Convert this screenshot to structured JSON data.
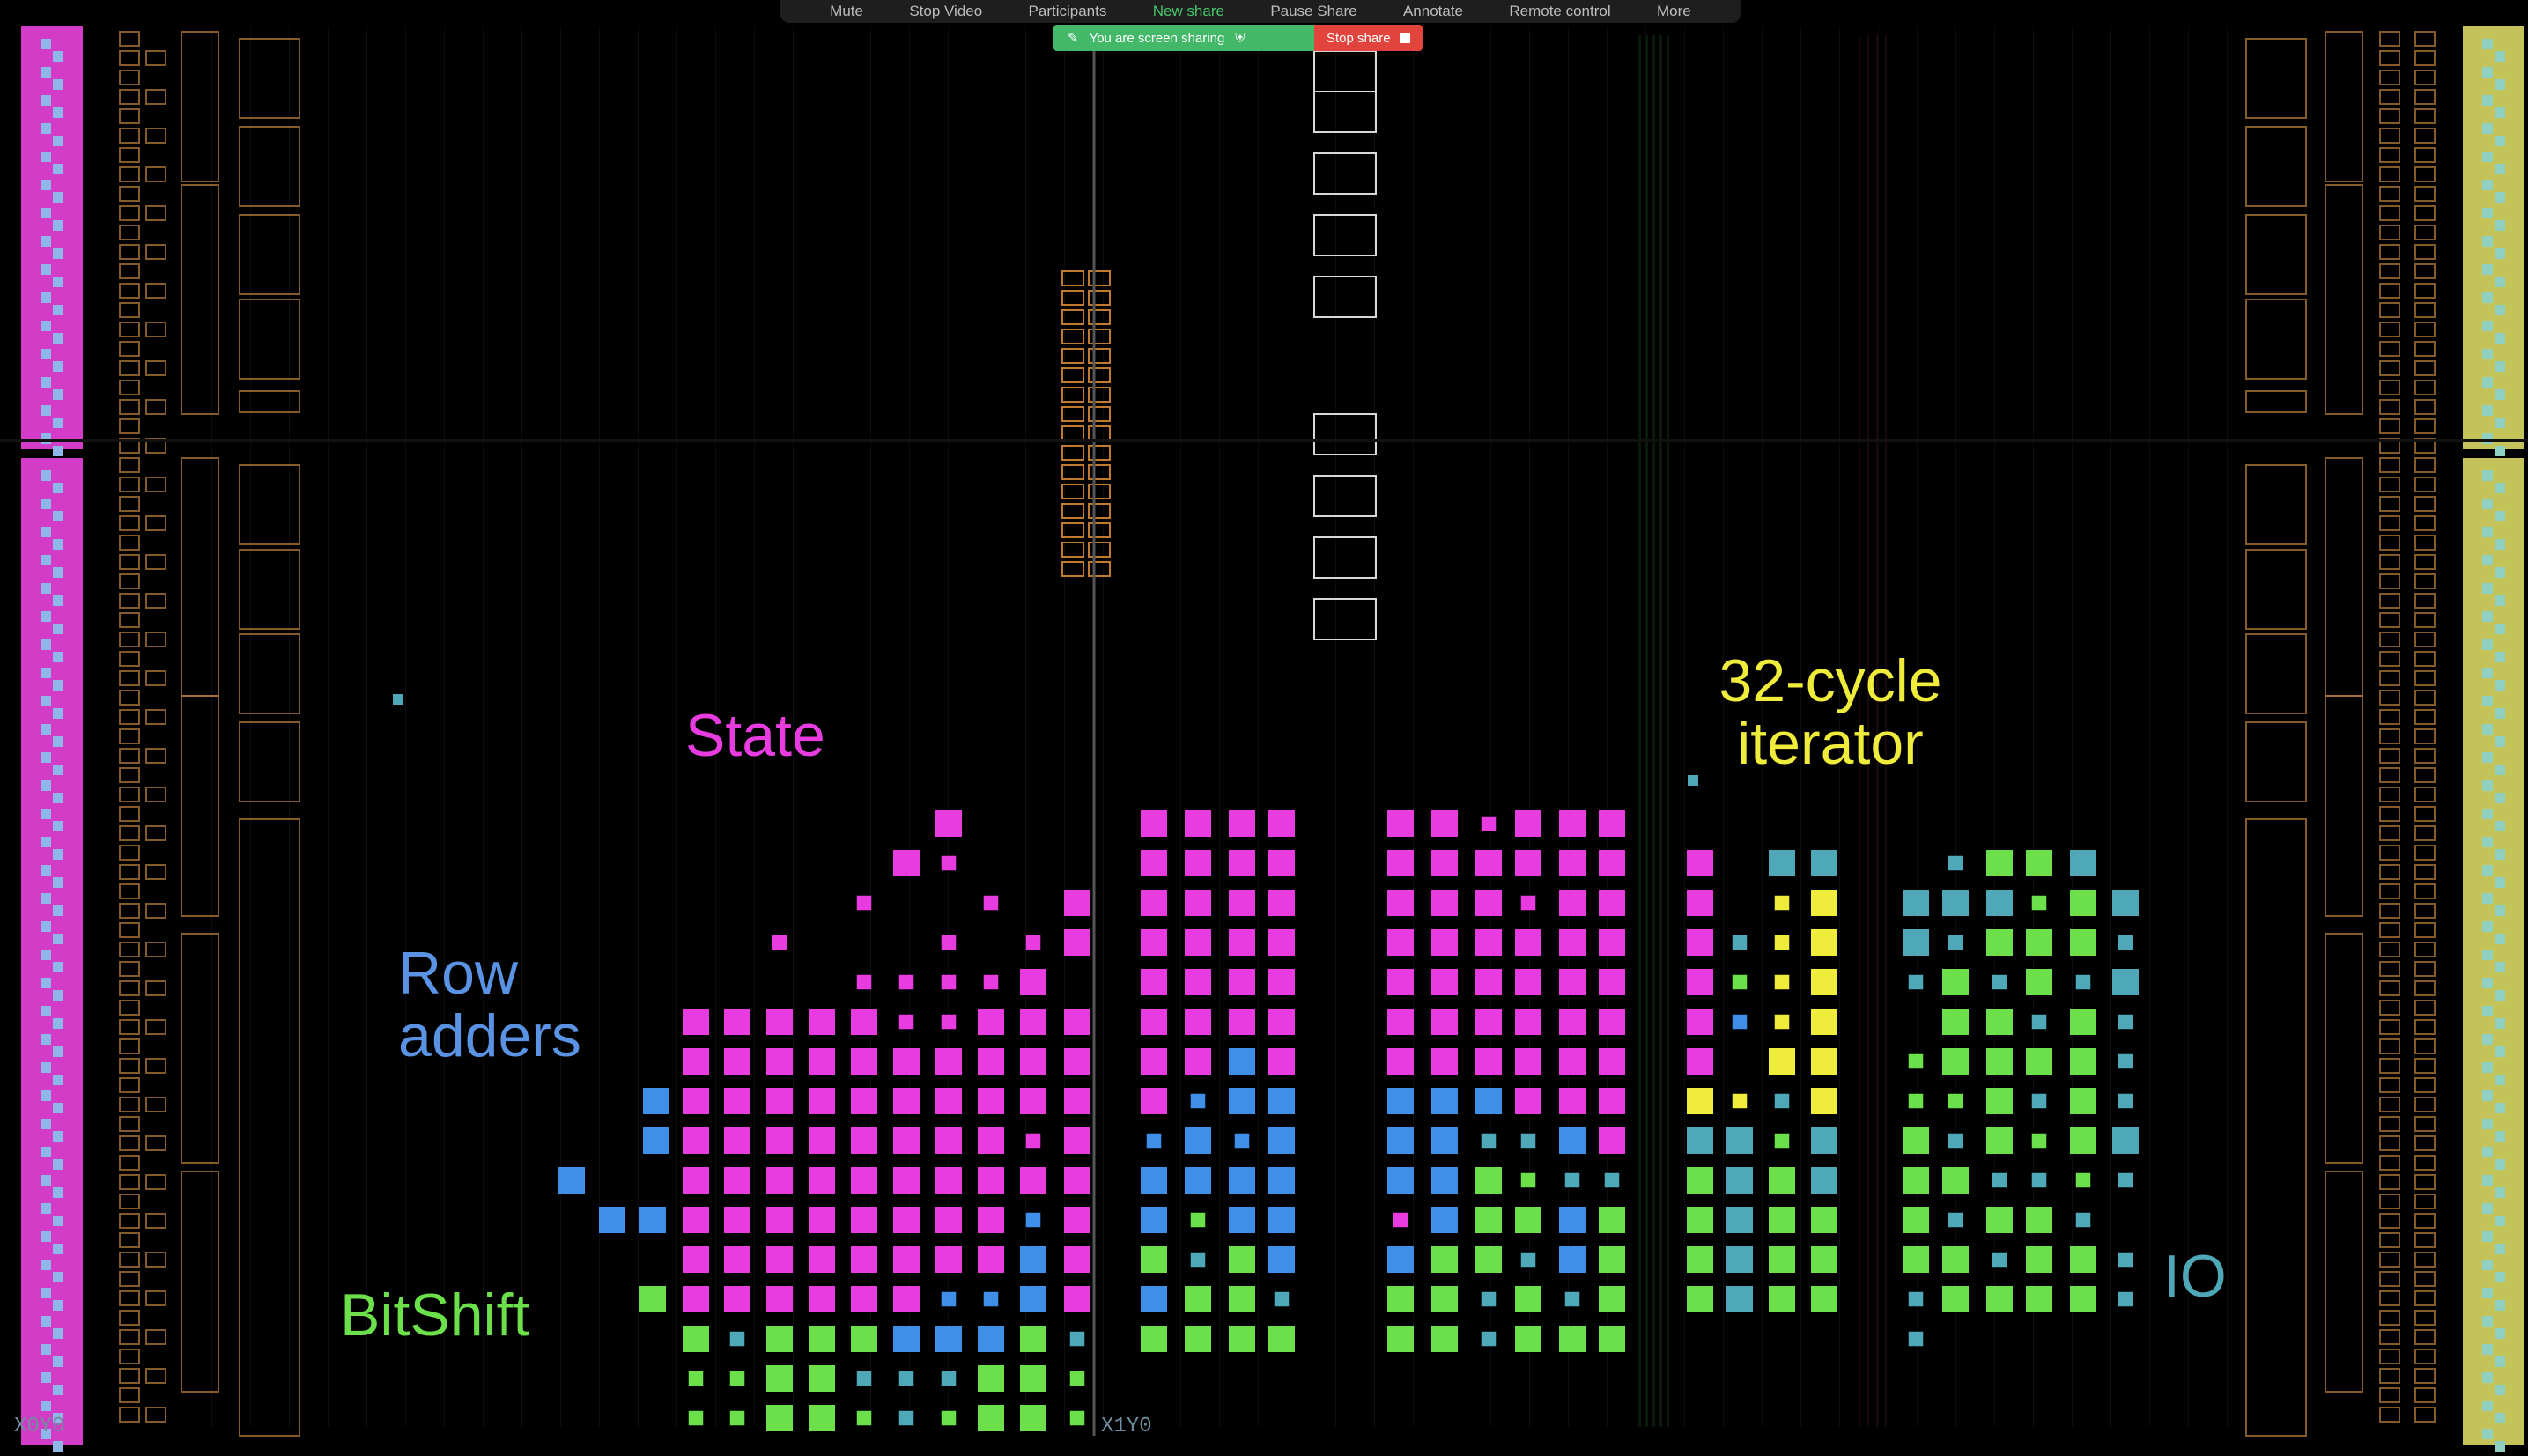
{
  "toolbar": {
    "buttons": [
      "Mute",
      "Stop Video",
      "Participants",
      "New share",
      "Pause Share",
      "Annotate",
      "Remote control",
      "More"
    ],
    "active": "New share"
  },
  "share": {
    "status": "You are screen sharing",
    "stop_label": "Stop share"
  },
  "labels": {
    "state": "State",
    "row_adders": "Row\nadders",
    "bitshift": "BitShift",
    "iterator": "32-cycle\niterator",
    "io": "IO"
  },
  "coords": {
    "bottom_left": "X0Y0",
    "bottom_mid": "X1Y0"
  },
  "colors": {
    "state": "#e83ce0",
    "adder": "#3f8ee8",
    "bitshift": "#6be04a",
    "iterator": "#f0ec3c",
    "teal": "#4fa8b8",
    "io_right": "#c9c95a",
    "outline": "#b07a3a",
    "grid": "#2a1a10"
  }
}
